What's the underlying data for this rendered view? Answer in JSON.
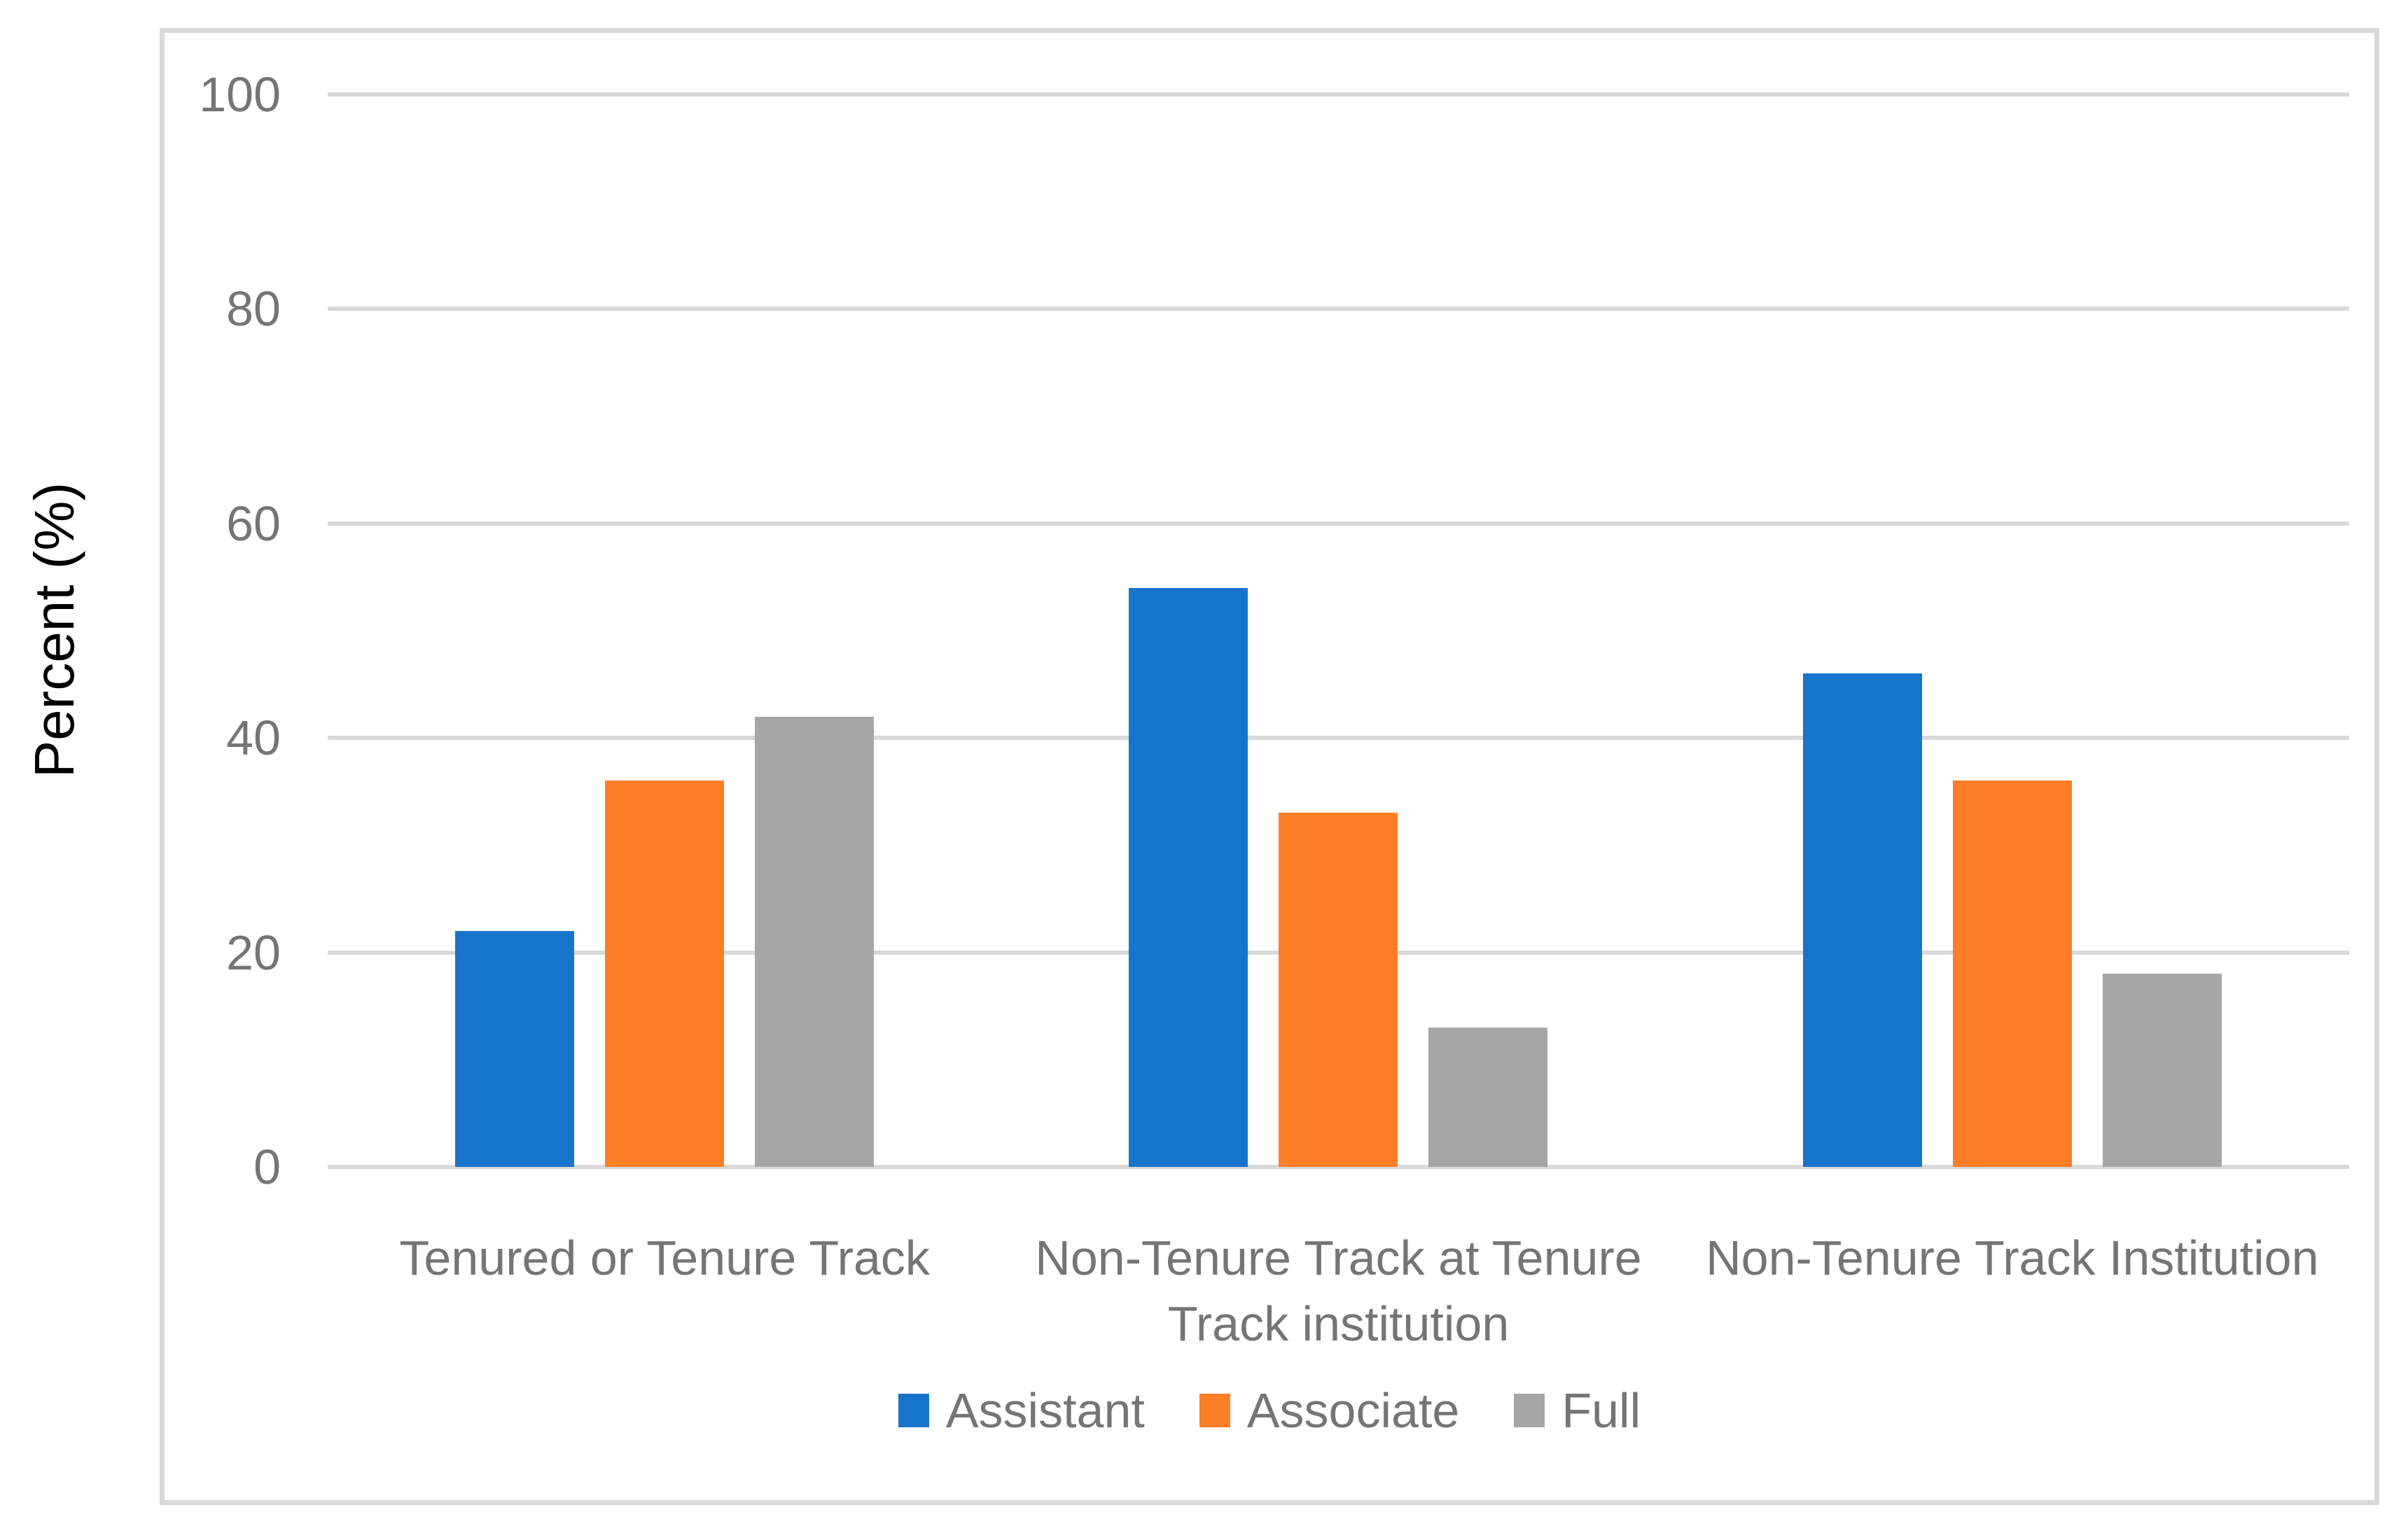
{
  "figure": {
    "background": "#ffffff",
    "border_color": "#d9d9d9"
  },
  "chart_data": {
    "type": "bar",
    "title": "",
    "xlabel": "",
    "ylabel": "Percent (%)",
    "ylim": [
      0,
      100
    ],
    "yticks": [
      0,
      20,
      40,
      60,
      80,
      100
    ],
    "grid": "horizontal",
    "gridline_color": "#d9d9d9",
    "tick_label_color": "#757575",
    "legend_position": "bottom",
    "categories": [
      "Tenured or Tenure Track",
      "Non-Tenure Track at Tenure\nTrack institution",
      "Non-Tenure Track Institution"
    ],
    "series": [
      {
        "name": "Assistant",
        "color": "#1874CB",
        "values": [
          22,
          54,
          46
        ]
      },
      {
        "name": "Associate",
        "color": "#FF7E27",
        "values": [
          36,
          33,
          36
        ]
      },
      {
        "name": "Full",
        "color": "#A6A6A6",
        "values": [
          42,
          13,
          18
        ]
      }
    ]
  }
}
